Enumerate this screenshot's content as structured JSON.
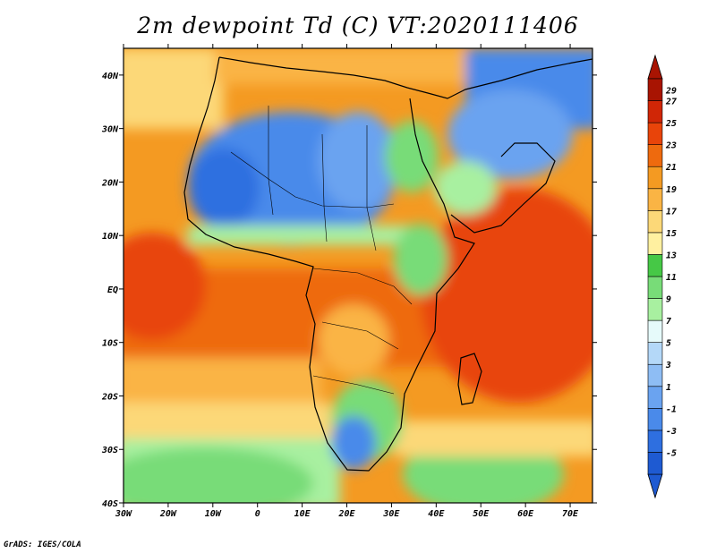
{
  "title": "2m dewpoint Td (C) VT:2020111406",
  "credit": "GrADS: IGES/COLA",
  "map": {
    "variable": "2m dewpoint",
    "units": "C",
    "valid_time": "2020111406",
    "lon_range": [
      -30,
      75
    ],
    "lat_range": [
      -40,
      45
    ],
    "lat_labels": [
      "40N",
      "30N",
      "20N",
      "10N",
      "EQ",
      "10S",
      "20S",
      "30S",
      "40S"
    ],
    "lon_labels": [
      "30W",
      "20W",
      "10W",
      "0",
      "10E",
      "20E",
      "30E",
      "40E",
      "50E",
      "60E",
      "70E"
    ]
  },
  "colorbar": {
    "labels": [
      "-5",
      "-3",
      "-1",
      "1",
      "3",
      "5",
      "7",
      "9",
      "11",
      "13",
      "15",
      "17",
      "19",
      "21",
      "23",
      "25",
      "27",
      "29"
    ],
    "colors": [
      "#1e5ad2",
      "#2e6fe0",
      "#4a8aea",
      "#6aa3f0",
      "#8ebdf4",
      "#b4d8f8",
      "#e6fafa",
      "#a8f0a0",
      "#78dc78",
      "#46c846",
      "#fff0a0",
      "#fcd878",
      "#fab444",
      "#f49a22",
      "#ee6a0e",
      "#e8440a",
      "#d02606",
      "#a81402"
    ]
  }
}
